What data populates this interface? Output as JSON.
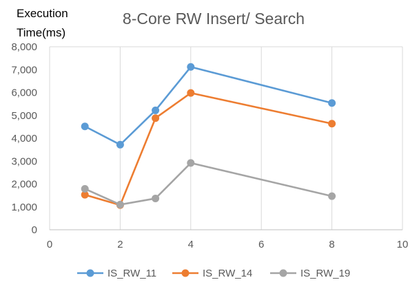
{
  "chart_data": {
    "type": "line",
    "title": "8-Core RW Insert/ Search",
    "ylabel_lines": [
      "Execution",
      "Time(ms)"
    ],
    "xlabel": "",
    "xlim": [
      0,
      10
    ],
    "ylim": [
      0,
      8000
    ],
    "x_ticks": [
      0,
      2,
      4,
      6,
      8,
      10
    ],
    "y_ticks": [
      0,
      1000,
      2000,
      3000,
      4000,
      5000,
      6000,
      7000,
      8000
    ],
    "y_tick_labels": [
      "0",
      "1,000",
      "2,000",
      "3,000",
      "4,000",
      "5,000",
      "6,000",
      "7,000",
      "8,000"
    ],
    "grid": "vertical",
    "legend_position": "bottom",
    "x": [
      1,
      2,
      3,
      4,
      8
    ],
    "series": [
      {
        "name": "IS_RW_11",
        "color": "#5B9BD5",
        "values": [
          4520,
          3720,
          5220,
          7120,
          5540
        ]
      },
      {
        "name": "IS_RW_14",
        "color": "#ED7D31",
        "values": [
          1530,
          1080,
          4880,
          5980,
          4640
        ]
      },
      {
        "name": "IS_RW_19",
        "color": "#A5A5A5",
        "values": [
          1790,
          1100,
          1370,
          2920,
          1470
        ]
      }
    ]
  }
}
